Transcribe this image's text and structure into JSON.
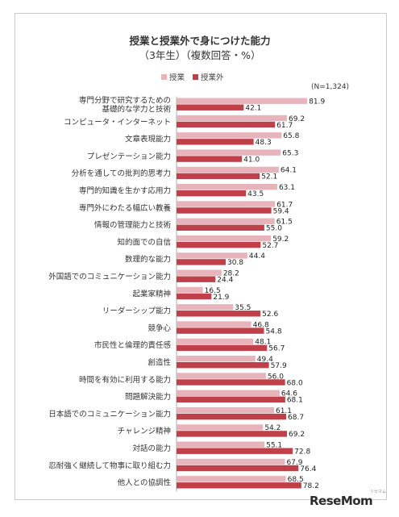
{
  "title_line1": "授業と授業外で身につけた能力",
  "title_line2": "（3年生）（複数回答・%）",
  "note": "(N=1,324)",
  "watermark": {
    "main": "ReseMom",
    "sub": "リセマム"
  },
  "colors": {
    "in_class": "#e8b4bc",
    "outside": "#c0404a"
  },
  "chart_data": {
    "type": "bar",
    "orientation": "horizontal",
    "title": "授業と授業外で身につけた能力 （3年生）（複数回答・%）",
    "legend_placement": "top",
    "categories": [
      [
        "専門分野で研究するための",
        "基礎的な学力と技術"
      ],
      [
        "コンピュータ・インターネット"
      ],
      [
        "文章表現能力"
      ],
      [
        "プレゼンテーション能力"
      ],
      [
        "分析を通しての批判的思考力"
      ],
      [
        "専門的知識を生かす応用力"
      ],
      [
        "専門外にわたる幅広い教養"
      ],
      [
        "情報の管理能力と技術"
      ],
      [
        "知的面での自信"
      ],
      [
        "数理的な能力"
      ],
      [
        "外国語でのコミュニケーション能力"
      ],
      [
        "起業家精神"
      ],
      [
        "リーダーシップ能力"
      ],
      [
        "競争心"
      ],
      [
        "市民性と倫理的責任感"
      ],
      [
        "創造性"
      ],
      [
        "時間を有効に利用する能力"
      ],
      [
        "問題解決能力"
      ],
      [
        "日本語でのコミュニケーション能力"
      ],
      [
        "チャレンジ精神"
      ],
      [
        "対話の能力"
      ],
      [
        "忍耐強く継続して物事に取り組む力"
      ],
      [
        "他人との協調性"
      ]
    ],
    "series": [
      {
        "name": "授業",
        "values": [
          81.9,
          69.2,
          65.8,
          65.3,
          64.1,
          63.1,
          61.7,
          61.5,
          59.2,
          44.4,
          28.2,
          16.5,
          35.5,
          46.8,
          48.1,
          49.4,
          56.0,
          64.6,
          61.1,
          54.2,
          55.1,
          67.9,
          68.5
        ]
      },
      {
        "name": "授業外",
        "values": [
          42.1,
          61.7,
          48.3,
          41.0,
          52.1,
          43.5,
          59.4,
          55.0,
          52.7,
          30.8,
          24.4,
          21.9,
          52.6,
          54.8,
          56.7,
          57.9,
          68.0,
          68.1,
          68.7,
          69.2,
          72.8,
          76.4,
          78.2
        ]
      }
    ],
    "xlim": [
      0,
      100
    ],
    "grid": false
  }
}
